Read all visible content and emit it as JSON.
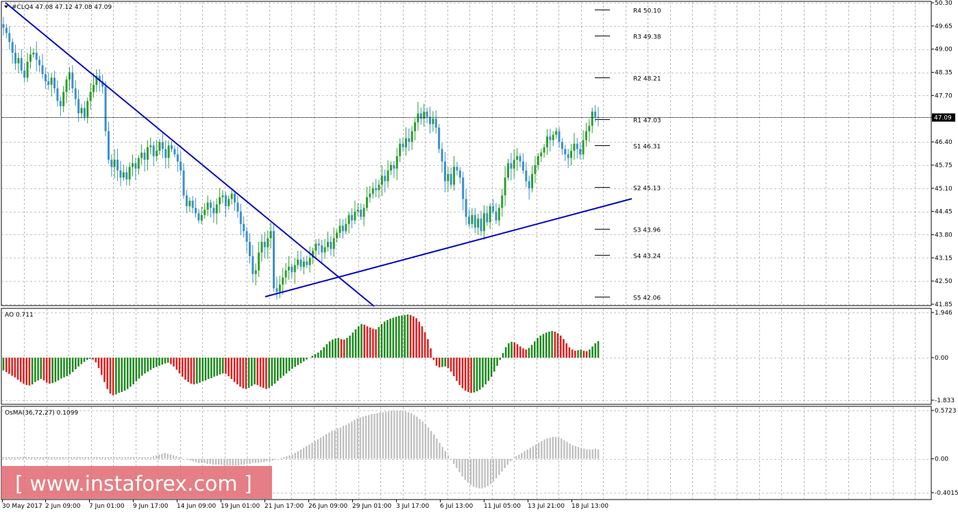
{
  "header": {
    "symbol_line": "#CLQ4  47.08 47.12 47.08 47.09",
    "menu_icon": "triangle-down-icon"
  },
  "watermark": "[ www.instaforex.com ]",
  "colors": {
    "bull": "#2ca02c",
    "bear": "#3a8fd0",
    "trendline": "#0000c8",
    "ao_up": "#1f8a1f",
    "ao_down": "#e02020",
    "osma": "#c0c0c0",
    "watermark_bg": "#e06870"
  },
  "chart_data": [
    {
      "type": "candlestick",
      "name_label": "#CLQ4",
      "y_ticks": [
        "50.30",
        "49.65",
        "49.00",
        "48.35",
        "47.70",
        "47.09",
        "46.40",
        "45.75",
        "45.10",
        "44.45",
        "43.80",
        "43.15",
        "42.50",
        "41.85"
      ],
      "y_tick_values": [
        50.3,
        49.65,
        49.0,
        48.35,
        47.7,
        47.09,
        46.4,
        45.75,
        45.1,
        44.45,
        43.8,
        43.15,
        42.5,
        41.85
      ],
      "ylim": [
        41.85,
        50.3
      ],
      "current_price": "47.09",
      "current_price_value": 47.09,
      "x_ticks": [
        "30 May 2017",
        "2 Jun 09:00",
        "7 Jun 01:00",
        "9 Jun 17:00",
        "14 Jun 09:00",
        "19 Jun 01:00",
        "21 Jun 17:00",
        "26 Jun 09:00",
        "29 Jun 01:00",
        "3 Jul 17:00",
        "6 Jul 13:00",
        "11 Jul 05:00",
        "13 Jul 21:00",
        "18 Jul 13:00"
      ],
      "pivot_levels": [
        {
          "label": "R4 50.10",
          "value": 50.1
        },
        {
          "label": "R3 49.38",
          "value": 49.38
        },
        {
          "label": "R2 48.21",
          "value": 48.21
        },
        {
          "label": "R1 47.03",
          "value": 47.03
        },
        {
          "label": "S1 46.31",
          "value": 46.31
        },
        {
          "label": "S2 45.13",
          "value": 45.13
        },
        {
          "label": "S3 43.96",
          "value": 43.96
        },
        {
          "label": "S4 43.24",
          "value": 43.24
        },
        {
          "label": "S5 42.06",
          "value": 42.06
        }
      ],
      "closes": [
        49.6,
        49.45,
        49.2,
        48.9,
        48.6,
        48.75,
        48.4,
        48.2,
        48.65,
        48.85,
        48.9,
        48.7,
        48.55,
        48.3,
        48.1,
        48.0,
        48.2,
        47.9,
        47.55,
        47.4,
        47.8,
        48.15,
        48.35,
        47.9,
        47.6,
        47.2,
        47.35,
        47.1,
        47.55,
        47.8,
        48.0,
        48.25,
        48.1,
        47.95,
        46.7,
        45.9,
        45.7,
        45.9,
        45.6,
        45.4,
        45.55,
        45.35,
        45.7,
        45.8,
        45.65,
        45.95,
        46.1,
        45.9,
        46.25,
        46.3,
        46.0,
        46.15,
        46.4,
        46.2,
        45.95,
        46.3,
        46.2,
        46.05,
        45.85,
        45.6,
        44.9,
        44.6,
        44.75,
        44.55,
        44.4,
        44.2,
        44.35,
        44.5,
        44.7,
        44.55,
        44.4,
        44.65,
        44.85,
        44.9,
        44.6,
        44.8,
        44.95,
        44.7,
        44.45,
        44.1,
        43.9,
        43.6,
        43.2,
        42.7,
        42.8,
        43.3,
        43.6,
        43.45,
        43.7,
        43.9,
        42.3,
        42.2,
        42.4,
        42.6,
        42.8,
        42.9,
        42.75,
        42.95,
        43.1,
        42.9,
        43.05,
        42.95,
        43.15,
        43.35,
        43.55,
        43.5,
        43.3,
        43.45,
        43.6,
        43.4,
        43.7,
        43.85,
        44.05,
        43.9,
        44.1,
        44.35,
        44.2,
        44.45,
        44.5,
        44.3,
        44.55,
        44.85,
        44.95,
        45.1,
        45.05,
        45.2,
        45.45,
        45.3,
        45.6,
        45.75,
        45.65,
        46.0,
        46.35,
        46.25,
        46.5,
        46.4,
        46.7,
        46.95,
        47.2,
        47.05,
        47.25,
        47.1,
        46.9,
        47.05,
        46.8,
        46.2,
        45.85,
        45.3,
        45.5,
        45.2,
        45.7,
        45.6,
        45.4,
        44.8,
        44.3,
        44.1,
        44.35,
        44.0,
        44.25,
        43.9,
        44.4,
        44.15,
        44.6,
        44.45,
        44.2,
        44.55,
        44.9,
        45.4,
        45.8,
        45.65,
        45.9,
        46.0,
        45.85,
        45.6,
        45.3,
        45.1,
        45.5,
        45.75,
        46.0,
        46.1,
        46.25,
        46.55,
        46.45,
        46.6,
        46.7,
        46.4,
        46.2,
        46.05,
        45.95,
        46.15,
        46.35,
        46.2,
        46.05,
        46.45,
        46.7,
        46.85,
        47.25,
        47.1,
        47.09
      ],
      "axis_label_current": "47.09"
    },
    {
      "type": "bar",
      "indicator": "AO",
      "label": "AO 0.711",
      "y_ticks": [
        "1.946",
        "0.00",
        "-1.833"
      ],
      "y_tick_values": [
        1.946,
        0.0,
        -1.833
      ],
      "ylim": [
        -1.833,
        1.946
      ],
      "values": [
        -0.55,
        -0.62,
        -0.7,
        -0.78,
        -0.85,
        -0.95,
        -1.05,
        -1.12,
        -1.18,
        -1.2,
        -1.15,
        -1.05,
        -0.98,
        -0.92,
        -0.98,
        -1.08,
        -1.12,
        -1.1,
        -1.05,
        -0.98,
        -0.9,
        -0.85,
        -0.8,
        -0.72,
        -0.62,
        -0.5,
        -0.38,
        -0.28,
        -0.18,
        -0.1,
        -0.05,
        -0.08,
        -0.2,
        -0.45,
        -0.75,
        -1.05,
        -1.35,
        -1.55,
        -1.62,
        -1.58,
        -1.52,
        -1.48,
        -1.42,
        -1.35,
        -1.25,
        -1.15,
        -1.02,
        -0.9,
        -0.78,
        -0.68,
        -0.6,
        -0.52,
        -0.45,
        -0.4,
        -0.35,
        -0.3,
        -0.25,
        -0.22,
        -0.28,
        -0.38,
        -0.52,
        -0.68,
        -0.82,
        -0.95,
        -1.05,
        -1.12,
        -1.15,
        -1.12,
        -1.08,
        -1.02,
        -0.98,
        -0.92,
        -0.88,
        -0.82,
        -0.78,
        -0.72,
        -0.68,
        -0.7,
        -0.8,
        -0.92,
        -1.05,
        -1.15,
        -1.25,
        -1.32,
        -1.35,
        -1.3,
        -1.22,
        -1.15,
        -1.18,
        -1.25,
        -1.3,
        -1.35,
        -1.3,
        -1.22,
        -1.12,
        -1.0,
        -0.88,
        -0.78,
        -0.68,
        -0.58,
        -0.48,
        -0.4,
        -0.32,
        -0.24,
        -0.16,
        -0.08,
        0.0,
        0.08,
        0.15,
        0.22,
        0.32,
        0.45,
        0.58,
        0.7,
        0.78,
        0.82,
        0.85,
        0.8,
        0.78,
        0.85,
        0.95,
        1.08,
        1.22,
        1.35,
        1.45,
        1.42,
        1.35,
        1.3,
        1.25,
        1.22,
        1.32,
        1.45,
        1.55,
        1.62,
        1.68,
        1.72,
        1.76,
        1.8,
        1.82,
        1.84,
        1.86,
        1.84,
        1.78,
        1.7,
        1.55,
        1.35,
        1.1,
        0.8,
        0.4,
        -0.1,
        -0.35,
        -0.42,
        -0.4,
        -0.38,
        -0.45,
        -0.6,
        -0.8,
        -1.0,
        -1.18,
        -1.32,
        -1.42,
        -1.48,
        -1.52,
        -1.5,
        -1.45,
        -1.38,
        -1.28,
        -1.15,
        -1.0,
        -0.82,
        -0.6,
        -0.35,
        -0.1,
        0.2,
        0.45,
        0.62,
        0.68,
        0.66,
        0.58,
        0.48,
        0.4,
        0.35,
        0.42,
        0.55,
        0.7,
        0.85,
        0.95,
        1.02,
        1.08,
        1.12,
        1.15,
        1.12,
        1.05,
        0.95,
        0.8,
        0.62,
        0.45,
        0.35,
        0.3,
        0.32,
        0.35,
        0.3,
        0.28,
        0.35,
        0.48,
        0.62,
        0.71
      ]
    },
    {
      "type": "bar",
      "indicator": "OsMA",
      "label": "OsMA(36,72,27) 0.1099",
      "y_ticks": [
        "0.5723",
        "0.00",
        "-0.4015"
      ],
      "y_tick_values": [
        0.5723,
        0.0,
        -0.4015
      ],
      "ylim": [
        -0.4015,
        0.5723
      ],
      "values": [
        0.02,
        0.02,
        0.02,
        0.02,
        0.02,
        0.02,
        0.02,
        0.02,
        0.02,
        0.02,
        0.02,
        0.02,
        0.02,
        0.02,
        0.02,
        0.02,
        0.02,
        0.02,
        0.02,
        0.02,
        0.02,
        0.02,
        0.02,
        0.02,
        0.02,
        0.02,
        0.02,
        0.02,
        0.02,
        0.02,
        0.02,
        0.02,
        0.02,
        0.02,
        0.02,
        0.02,
        0.02,
        0.02,
        0.02,
        0.02,
        0.02,
        0.02,
        0.02,
        0.02,
        0.02,
        0.02,
        0.02,
        0.02,
        0.02,
        0.02,
        0.02,
        0.02,
        0.02,
        0.03,
        0.04,
        0.05,
        0.06,
        0.07,
        0.06,
        0.05,
        0.04,
        0.03,
        0.02,
        0.01,
        0.0,
        -0.01,
        -0.02,
        -0.03,
        -0.04,
        -0.05,
        -0.05,
        -0.05,
        -0.06,
        -0.06,
        -0.07,
        -0.07,
        -0.07,
        -0.07,
        -0.08,
        -0.08,
        -0.08,
        -0.08,
        -0.08,
        -0.08,
        -0.07,
        -0.07,
        -0.06,
        -0.06,
        -0.05,
        -0.05,
        -0.05,
        -0.04,
        -0.04,
        -0.03,
        -0.03,
        -0.02,
        -0.01,
        0.0,
        0.01,
        0.02,
        0.03,
        0.04,
        0.05,
        0.07,
        0.09,
        0.11,
        0.13,
        0.15,
        0.17,
        0.19,
        0.21,
        0.23,
        0.25,
        0.27,
        0.29,
        0.31,
        0.33,
        0.34,
        0.36,
        0.37,
        0.39,
        0.4,
        0.42,
        0.44,
        0.46,
        0.48,
        0.49,
        0.5,
        0.51,
        0.52,
        0.53,
        0.53,
        0.54,
        0.55,
        0.55,
        0.56,
        0.56,
        0.57,
        0.57,
        0.57,
        0.57,
        0.57,
        0.56,
        0.55,
        0.54,
        0.52,
        0.5,
        0.47,
        0.44,
        0.41,
        0.37,
        0.33,
        0.29,
        0.24,
        0.19,
        0.14,
        0.09,
        0.04,
        -0.01,
        -0.06,
        -0.11,
        -0.16,
        -0.21,
        -0.25,
        -0.28,
        -0.31,
        -0.33,
        -0.34,
        -0.35,
        -0.35,
        -0.34,
        -0.32,
        -0.3,
        -0.27,
        -0.23,
        -0.19,
        -0.15,
        -0.11,
        -0.07,
        -0.03,
        0.0,
        0.03,
        0.05,
        0.07,
        0.09,
        0.11,
        0.13,
        0.15,
        0.17,
        0.19,
        0.21,
        0.23,
        0.24,
        0.25,
        0.26,
        0.26,
        0.25,
        0.24,
        0.22,
        0.2,
        0.18,
        0.16,
        0.15,
        0.14,
        0.13,
        0.12,
        0.11,
        0.11,
        0.11,
        0.12,
        0.1099
      ]
    }
  ]
}
